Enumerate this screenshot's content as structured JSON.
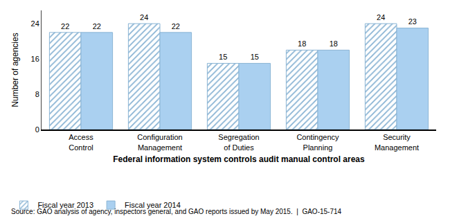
{
  "chart_data": {
    "type": "bar",
    "categories": [
      "Access\nControl",
      "Configuration\nManagement",
      "Segregation\nof Duties",
      "Contingency\nPlanning",
      "Security\nManagement"
    ],
    "series": [
      {
        "name": "Fiscal year 2013",
        "color": "#8ab4d4",
        "values": [
          22,
          24,
          15,
          18,
          24
        ]
      },
      {
        "name": "Fiscal year 2014",
        "color": "#aad0f0",
        "values": [
          22,
          22,
          15,
          18,
          23
        ]
      }
    ],
    "xlabel": "Federal information system controls audit manual control areas",
    "ylabel": "Number of agencies",
    "annotations": [
      "Source: GAO analysis of agency, inspectors general, and GAO reports issued by May 2015.  |  GAO-15-714"
    ],
    "ylim": [
      0,
      27
    ],
    "yticks": [
      0,
      8,
      16,
      24
    ],
    "grid": false,
    "data_labels": true,
    "legend": "bottom"
  }
}
